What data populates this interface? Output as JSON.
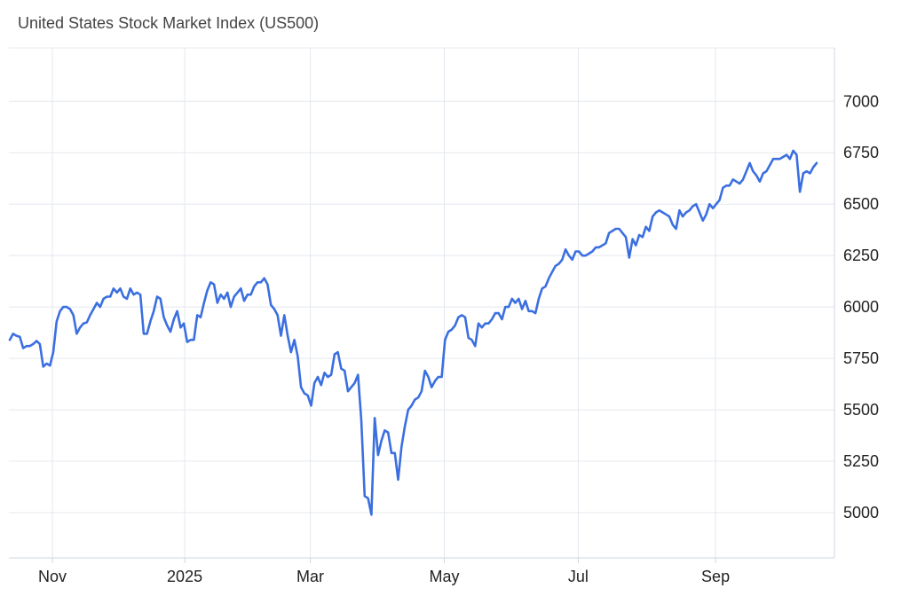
{
  "chart_data": {
    "type": "line",
    "title": "United States Stock Market Index (US500)",
    "xlabel": "",
    "ylabel": "",
    "ylim": [
      4780,
      7260
    ],
    "yticks": [
      5000,
      5250,
      5500,
      5750,
      6000,
      6250,
      6500,
      6750,
      7000
    ],
    "xtick_labels": [
      "Nov",
      "2025",
      "Mar",
      "May",
      "Jul",
      "Sep"
    ],
    "xtick_positions": [
      2.6,
      10.5,
      18.0,
      26.0,
      34.0,
      42.2
    ],
    "x_range": [
      0,
      49.3
    ],
    "grid": true,
    "color": "#3b6fe0",
    "series": [
      {
        "values": [
          5840,
          5870,
          5860,
          5855,
          5800,
          5810,
          5810,
          5820,
          5835,
          5820,
          5710,
          5725,
          5715,
          5780,
          5930,
          5980,
          6000,
          6000,
          5990,
          5960,
          5870,
          5900,
          5920,
          5925,
          5960,
          5990,
          6020,
          6000,
          6040,
          6050,
          6050,
          6090,
          6070,
          6090,
          6050,
          6040,
          6090,
          6060,
          6070,
          6060,
          5870,
          5870,
          5930,
          5980,
          6050,
          6040,
          5950,
          5910,
          5880,
          5940,
          5980,
          5900,
          5920,
          5830,
          5840,
          5840,
          5960,
          5950,
          6020,
          6080,
          6120,
          6110,
          6020,
          6060,
          6040,
          6070,
          6000,
          6050,
          6070,
          6090,
          6030,
          6060,
          6060,
          6100,
          6120,
          6120,
          6140,
          6110,
          6010,
          5990,
          5960,
          5860,
          5960,
          5860,
          5780,
          5840,
          5760,
          5610,
          5580,
          5570,
          5520,
          5630,
          5660,
          5620,
          5680,
          5660,
          5670,
          5770,
          5780,
          5700,
          5690,
          5590,
          5610,
          5630,
          5670,
          5450,
          5080,
          5070,
          4990,
          5460,
          5280,
          5350,
          5400,
          5390,
          5290,
          5290,
          5160,
          5320,
          5420,
          5500,
          5520,
          5550,
          5560,
          5590,
          5690,
          5660,
          5610,
          5640,
          5660,
          5660,
          5840,
          5880,
          5890,
          5910,
          5950,
          5960,
          5950,
          5850,
          5840,
          5810,
          5920,
          5900,
          5920,
          5920,
          5940,
          5970,
          5970,
          5940,
          6000,
          6000,
          6040,
          6020,
          6040,
          5990,
          6030,
          5980,
          5980,
          5970,
          6040,
          6090,
          6100,
          6140,
          6170,
          6200,
          6210,
          6230,
          6280,
          6250,
          6230,
          6270,
          6270,
          6250,
          6250,
          6260,
          6270,
          6290,
          6290,
          6300,
          6310,
          6360,
          6370,
          6380,
          6380,
          6360,
          6340,
          6240,
          6330,
          6300,
          6350,
          6340,
          6390,
          6370,
          6440,
          6460,
          6470,
          6460,
          6450,
          6440,
          6400,
          6380,
          6470,
          6440,
          6460,
          6470,
          6490,
          6500,
          6460,
          6420,
          6450,
          6500,
          6480,
          6500,
          6520,
          6580,
          6590,
          6590,
          6620,
          6610,
          6600,
          6620,
          6660,
          6700,
          6660,
          6640,
          6610,
          6650,
          6660,
          6690,
          6720,
          6720,
          6720,
          6730,
          6740,
          6720,
          6760,
          6740,
          6560,
          6650,
          6660,
          6650,
          6680,
          6700
        ]
      }
    ]
  }
}
